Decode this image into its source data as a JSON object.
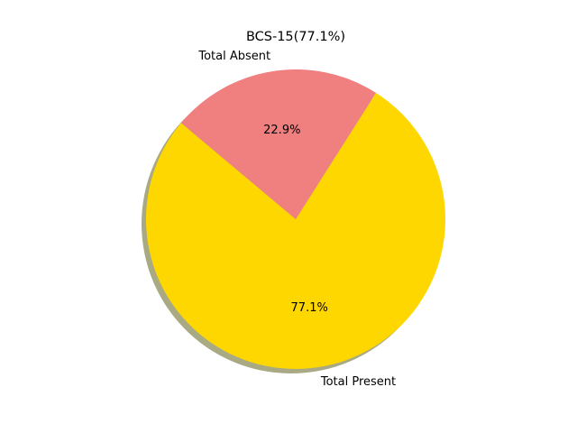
{
  "chart_data": {
    "type": "pie",
    "title": "BCS-15(77.1%)",
    "shadow": true,
    "slices": [
      {
        "label": "Total Present",
        "value": 77.1,
        "percent_label": "77.1%",
        "color": "#FFD700"
      },
      {
        "label": "Total Absent",
        "value": 22.9,
        "percent_label": "22.9%",
        "color": "#F08080"
      }
    ]
  }
}
